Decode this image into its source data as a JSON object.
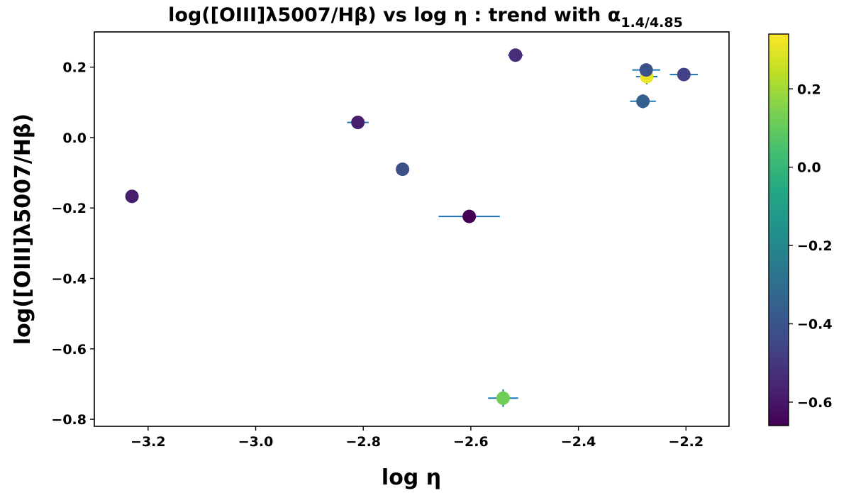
{
  "chart_data": {
    "type": "scatter",
    "title": {
      "main": "log([OIII]λ5007/Hβ) vs log η : trend with α",
      "subscript": "1.4/4.85"
    },
    "xlabel": "log η",
    "ylabel": "log([OIII]λ5007/Hβ)",
    "xlim": [
      -3.3,
      -2.12
    ],
    "ylim": [
      -0.82,
      0.3
    ],
    "x_ticks": [
      {
        "value": -3.2,
        "label": "−3.2"
      },
      {
        "value": -3.0,
        "label": "−3.0"
      },
      {
        "value": -2.8,
        "label": "−2.8"
      },
      {
        "value": -2.6,
        "label": "−2.6"
      },
      {
        "value": -2.4,
        "label": "−2.4"
      },
      {
        "value": -2.2,
        "label": "−2.2"
      }
    ],
    "y_ticks": [
      {
        "value": 0.2,
        "label": "0.2"
      },
      {
        "value": 0.0,
        "label": "0.0"
      },
      {
        "value": -0.2,
        "label": "−0.2"
      },
      {
        "value": -0.4,
        "label": "−0.4"
      },
      {
        "value": -0.6,
        "label": "−0.6"
      },
      {
        "value": -0.8,
        "label": "−0.8"
      }
    ],
    "colorbar": {
      "colormap": "viridis",
      "range": [
        -0.66,
        0.34
      ],
      "ticks": [
        {
          "value": 0.2,
          "label": "0.2"
        },
        {
          "value": 0.0,
          "label": "0.0"
        },
        {
          "value": -0.2,
          "label": "−0.2"
        },
        {
          "value": -0.4,
          "label": "−0.4"
        },
        {
          "value": -0.6,
          "label": "−0.6"
        }
      ]
    },
    "errorbar_color": "#1f77b4",
    "points": [
      {
        "x": -3.23,
        "y": -0.167,
        "c": -0.58,
        "xerr": 0.0,
        "yerr": 0.0
      },
      {
        "x": -2.81,
        "y": 0.043,
        "c": -0.58,
        "xerr": 0.02,
        "yerr": 0.0
      },
      {
        "x": -2.727,
        "y": -0.09,
        "c": -0.42,
        "xerr": 0.012,
        "yerr": 0.0
      },
      {
        "x": -2.603,
        "y": -0.224,
        "c": -0.66,
        "xerr": 0.057,
        "yerr": 0.0
      },
      {
        "x": -2.517,
        "y": 0.234,
        "c": -0.53,
        "xerr": 0.014,
        "yerr": 0.0
      },
      {
        "x": -2.54,
        "y": -0.74,
        "c": 0.12,
        "xerr": 0.028,
        "yerr": 0.025
      },
      {
        "x": -2.273,
        "y": 0.173,
        "c": 0.31,
        "xerr": 0.02,
        "yerr": 0.022
      },
      {
        "x": -2.274,
        "y": 0.192,
        "c": -0.4,
        "xerr": 0.026,
        "yerr": 0.0
      },
      {
        "x": -2.28,
        "y": 0.103,
        "c": -0.36,
        "xerr": 0.024,
        "yerr": 0.02
      },
      {
        "x": -2.204,
        "y": 0.179,
        "c": -0.47,
        "xerr": 0.026,
        "yerr": 0.0
      }
    ]
  }
}
